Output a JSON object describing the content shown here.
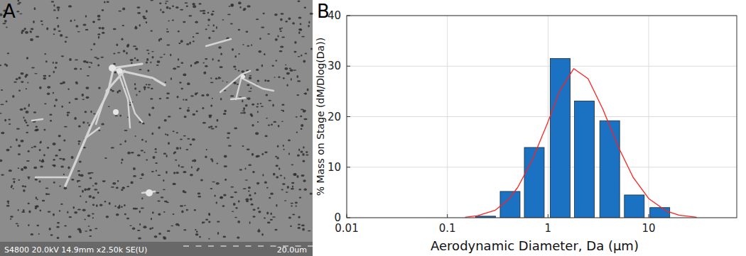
{
  "panels": {
    "a": {
      "label": "A",
      "info": "S4800 20.0kV 14.9mm x2.50k SE(U)",
      "scale_bar": "20.0um"
    },
    "b": {
      "label": "B"
    }
  },
  "chart_data": {
    "type": "bar",
    "xlabel": "Aerodynamic Diameter, Da (μm)",
    "ylabel": "% Mass on Stage (dM/Dlog(Da))",
    "log": "x",
    "grid": true,
    "xlim": [
      0.01,
      75
    ],
    "xticks": [
      0.01,
      0.1,
      1,
      10
    ],
    "ylim": [
      0,
      40
    ],
    "yticks": [
      0,
      10,
      20,
      30,
      40
    ],
    "series": [
      {
        "type": "bar",
        "color": "#1b72c2",
        "x": [
          0.24,
          0.42,
          0.73,
          1.32,
          2.3,
          4.1,
          7.2,
          12.9
        ],
        "values": [
          0.3,
          5.2,
          13.9,
          31.5,
          23.1,
          19.2,
          4.5,
          2.0
        ]
      },
      {
        "type": "line",
        "color": "#ff2020",
        "x": [
          0.15,
          0.2,
          0.3,
          0.4,
          0.5,
          0.7,
          1,
          1.3,
          1.8,
          2.5,
          3.5,
          5,
          7,
          10,
          15,
          20,
          30
        ],
        "values": [
          0.1,
          0.4,
          1.5,
          3.5,
          6,
          11.5,
          19,
          25,
          29.5,
          27.5,
          21.5,
          14,
          8,
          3.8,
          1.3,
          0.5,
          0.1
        ]
      }
    ]
  }
}
